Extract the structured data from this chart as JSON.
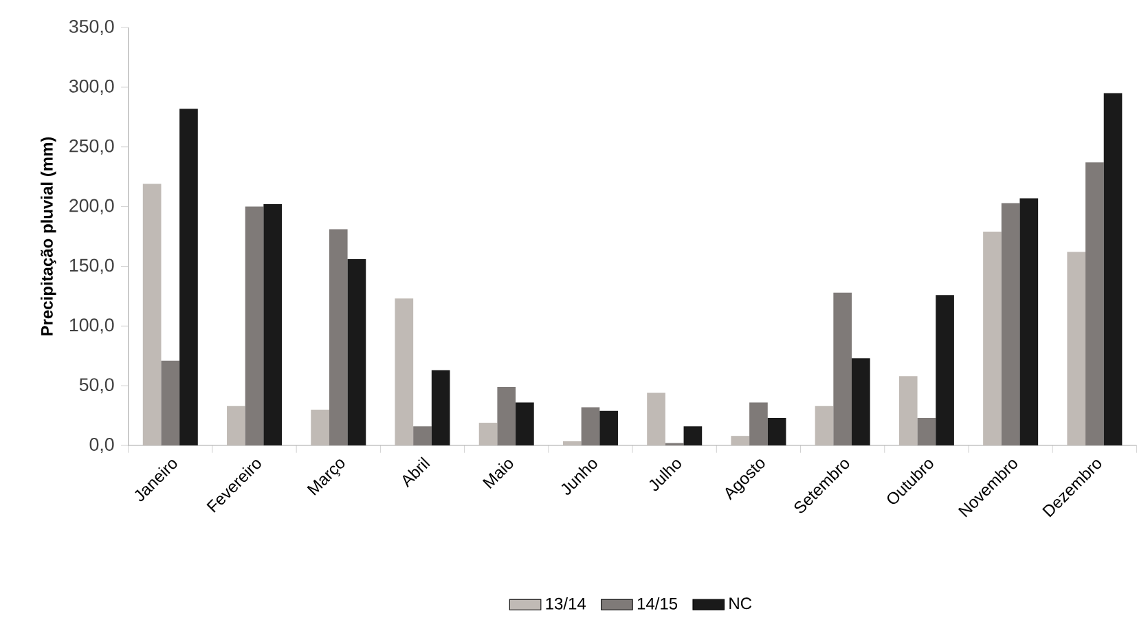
{
  "chart_data": {
    "type": "bar",
    "ylabel": "Precipitação  pluvial (mm)",
    "categories": [
      "Janeiro",
      "Fevereiro",
      "Março",
      "Abril",
      "Maio",
      "Junho",
      "Julho",
      "Agosto",
      "Setembro",
      "Outubro",
      "Novembro",
      "Dezembro"
    ],
    "series": [
      {
        "name": "13/14",
        "color": "#c0bab5",
        "values": [
          219,
          33,
          30,
          123,
          19,
          3.5,
          44,
          8,
          33,
          58,
          179,
          162
        ]
      },
      {
        "name": "14/15",
        "color": "#7f7a78",
        "values": [
          71,
          200,
          181,
          16,
          49,
          32,
          2,
          36,
          128,
          23,
          203,
          237
        ]
      },
      {
        "name": "NC",
        "color": "#1a1a1a",
        "values": [
          282,
          202,
          156,
          63,
          36,
          29,
          16,
          23,
          73,
          126,
          207,
          295
        ]
      }
    ],
    "ylim": [
      0,
      350
    ],
    "yticks": [
      {
        "value": 0,
        "label": "0,0"
      },
      {
        "value": 50,
        "label": "50,0"
      },
      {
        "value": 100,
        "label": "100,0"
      },
      {
        "value": 150,
        "label": "150,0"
      },
      {
        "value": 200,
        "label": "200,0"
      },
      {
        "value": 250,
        "label": "250,0"
      },
      {
        "value": 300,
        "label": "300,0"
      },
      {
        "value": 350,
        "label": "350,0"
      }
    ],
    "legend": "bottom"
  }
}
